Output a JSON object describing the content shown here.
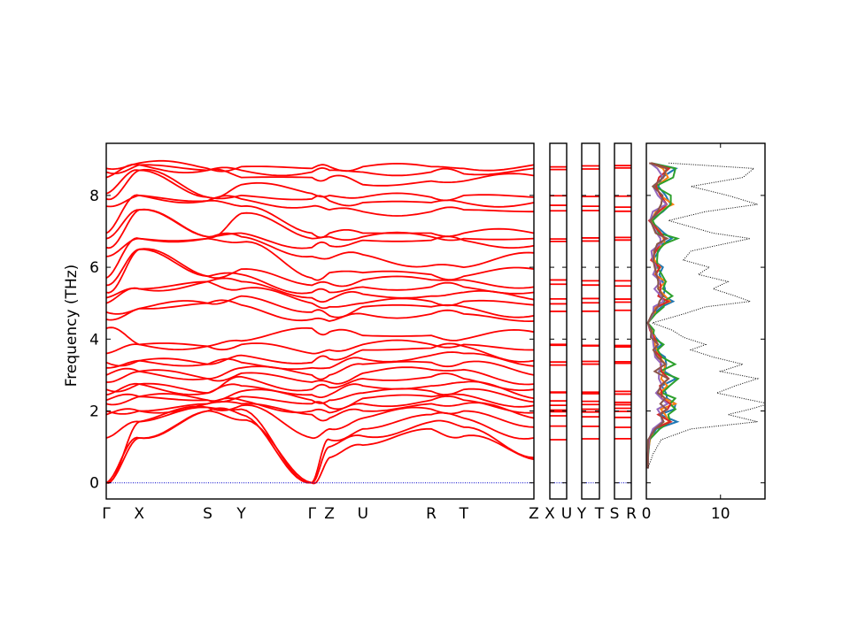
{
  "chart_data": [
    {
      "type": "line",
      "subtype": "phonon-band-structure",
      "ylabel": "Frequency (THz)",
      "ylim": [
        -0.45,
        9.45
      ],
      "yticks": [
        0,
        2,
        4,
        6,
        8
      ],
      "line_color": "#ff0000",
      "zero_line_color": "#0000cc",
      "main_path_labels": [
        "Γ",
        "X",
        "S",
        "Y",
        "Γ",
        "Z",
        "U",
        "R",
        "T",
        "Z"
      ],
      "label_fractions": [
        0,
        0.077,
        0.237,
        0.316,
        0.481,
        0.522,
        0.6,
        0.76,
        0.836,
        1.0
      ],
      "extra_labels": [
        "X",
        "U",
        "Y",
        "T",
        "S",
        "R"
      ],
      "gamma_bands": [
        0,
        0,
        0,
        1.25,
        1.9,
        2.0,
        2.2,
        2.3,
        2.45,
        2.6,
        2.8,
        3.0,
        3.2,
        3.35,
        3.6,
        4.3,
        4.55,
        4.75,
        5.0,
        5.15,
        5.3,
        5.5,
        5.7,
        6.3,
        6.55,
        6.8,
        6.95,
        7.7,
        7.9,
        8.05,
        8.5,
        8.65,
        8.75
      ],
      "x_bands": [
        1.25,
        1.25,
        1.7,
        1.7,
        2.0,
        2.0,
        2.4,
        2.4,
        2.75,
        2.75,
        3.1,
        3.1,
        3.4,
        3.4,
        3.85,
        3.85,
        4.85,
        4.85,
        5.4,
        5.4,
        6.5,
        6.5,
        6.8,
        6.8,
        7.6,
        7.6,
        8.0,
        8.0,
        8.7,
        8.7,
        8.85,
        8.85,
        8.9
      ],
      "s_bands": [
        2.0,
        2.0,
        2.1,
        2.1,
        2.2,
        2.2,
        2.3,
        2.3,
        2.5,
        2.5,
        2.9,
        2.9,
        3.3,
        3.3,
        3.8,
        3.8,
        5.0,
        5.0,
        5.6,
        5.6,
        5.75,
        5.75,
        6.8,
        6.8,
        6.85,
        6.85,
        7.85,
        7.85,
        7.95,
        7.95,
        8.7,
        8.7,
        8.75
      ],
      "y_bands": [
        1.75,
        1.9,
        2.05,
        2.15,
        2.2,
        2.3,
        2.4,
        2.55,
        2.7,
        2.95,
        3.05,
        3.2,
        3.35,
        3.55,
        3.85,
        3.95,
        4.95,
        5.2,
        5.4,
        5.6,
        5.8,
        5.95,
        6.7,
        6.85,
        6.95,
        7.5,
        7.7,
        7.9,
        8.0,
        8.3,
        8.5,
        8.7,
        8.8
      ],
      "z_bands": [
        0.7,
        1.0,
        1.2,
        1.5,
        1.8,
        1.95,
        2.1,
        2.3,
        2.45,
        2.65,
        2.8,
        3.0,
        3.2,
        3.45,
        3.7,
        4.2,
        4.5,
        4.65,
        4.9,
        5.1,
        5.3,
        5.55,
        5.85,
        6.25,
        6.6,
        6.85,
        6.95,
        7.6,
        7.85,
        8.0,
        8.5,
        8.7,
        8.8
      ],
      "u_bands": [
        1.05,
        1.3,
        1.5,
        1.8,
        2.0,
        2.2,
        2.35,
        2.5,
        2.7,
        2.9,
        3.05,
        3.3,
        3.45,
        3.7,
        3.85,
        4.1,
        4.7,
        4.9,
        5.0,
        5.25,
        5.45,
        5.65,
        5.85,
        6.35,
        6.75,
        6.85,
        6.95,
        7.55,
        7.8,
        7.95,
        8.3,
        8.65,
        8.8
      ],
      "r_bands": [
        1.5,
        1.7,
        1.9,
        2.05,
        2.2,
        2.3,
        2.4,
        2.55,
        2.7,
        2.95,
        3.15,
        3.35,
        3.55,
        3.75,
        3.85,
        4.1,
        4.7,
        4.9,
        5.05,
        5.2,
        5.45,
        5.65,
        5.8,
        6.05,
        6.75,
        6.85,
        6.95,
        7.55,
        7.8,
        7.95,
        8.4,
        8.65,
        8.8
      ],
      "t_bands": [
        1.3,
        1.55,
        1.8,
        2.0,
        2.2,
        2.3,
        2.45,
        2.6,
        2.8,
        2.9,
        3.15,
        3.35,
        3.6,
        3.8,
        3.85,
        4.0,
        4.7,
        4.9,
        5.05,
        5.3,
        5.45,
        5.65,
        5.75,
        6.0,
        6.75,
        6.8,
        6.95,
        7.6,
        7.8,
        8.0,
        8.4,
        8.6,
        8.75
      ],
      "z2_bands": [
        0.65,
        0.7,
        1.25,
        1.55,
        1.8,
        1.95,
        2.15,
        2.25,
        2.35,
        2.6,
        2.75,
        3.0,
        3.25,
        3.4,
        3.7,
        4.2,
        4.5,
        4.65,
        4.95,
        5.1,
        5.3,
        5.45,
        5.95,
        6.4,
        6.6,
        6.8,
        6.95,
        7.55,
        7.8,
        7.95,
        8.55,
        8.75,
        8.85
      ],
      "flat_segment_levels": [
        1.2,
        1.55,
        1.85,
        2.0,
        2.05,
        2.15,
        2.25,
        2.5,
        2.55,
        3.3,
        3.35,
        3.8,
        3.85,
        4.8,
        5.0,
        5.1,
        5.5,
        5.65,
        6.75,
        6.8,
        7.55,
        7.7,
        8.0,
        8.75,
        8.8
      ]
    },
    {
      "type": "line",
      "subtype": "projected-density-of-states",
      "xlim": [
        0,
        16
      ],
      "xticks": [
        0,
        10
      ],
      "xtick_labels": [
        "0",
        "10"
      ],
      "ylim": [
        -0.45,
        9.45
      ],
      "series_colors": [
        "#1f77b4",
        "#ff7f0e",
        "#2ca02c",
        "#d62728",
        "#9467bd",
        "#8c564b"
      ],
      "total_color": "#000000",
      "total_style": "dotted",
      "frequency": [
        0.4,
        0.8,
        1.2,
        1.5,
        1.7,
        1.9,
        2.05,
        2.2,
        2.35,
        2.5,
        2.7,
        2.9,
        3.1,
        3.3,
        3.5,
        3.7,
        3.85,
        4.05,
        4.25,
        4.45,
        4.7,
        4.9,
        5.05,
        5.2,
        5.4,
        5.6,
        5.8,
        6.0,
        6.2,
        6.45,
        6.65,
        6.8,
        6.95,
        7.3,
        7.55,
        7.75,
        8.0,
        8.25,
        8.5,
        8.75,
        8.9
      ],
      "total": [
        0.2,
        0.9,
        2.0,
        6.0,
        15.0,
        11.0,
        14.0,
        16.5,
        13.0,
        9.5,
        12.0,
        15.0,
        10.0,
        13.0,
        9.0,
        6.0,
        8.0,
        5.0,
        3.5,
        0.8,
        5.0,
        8.0,
        14.0,
        12.0,
        9.0,
        11.0,
        7.0,
        8.5,
        5.0,
        6.0,
        10.5,
        14.0,
        9.0,
        3.0,
        8.0,
        15.0,
        11.0,
        6.0,
        13.0,
        14.5,
        3.0
      ]
    }
  ]
}
